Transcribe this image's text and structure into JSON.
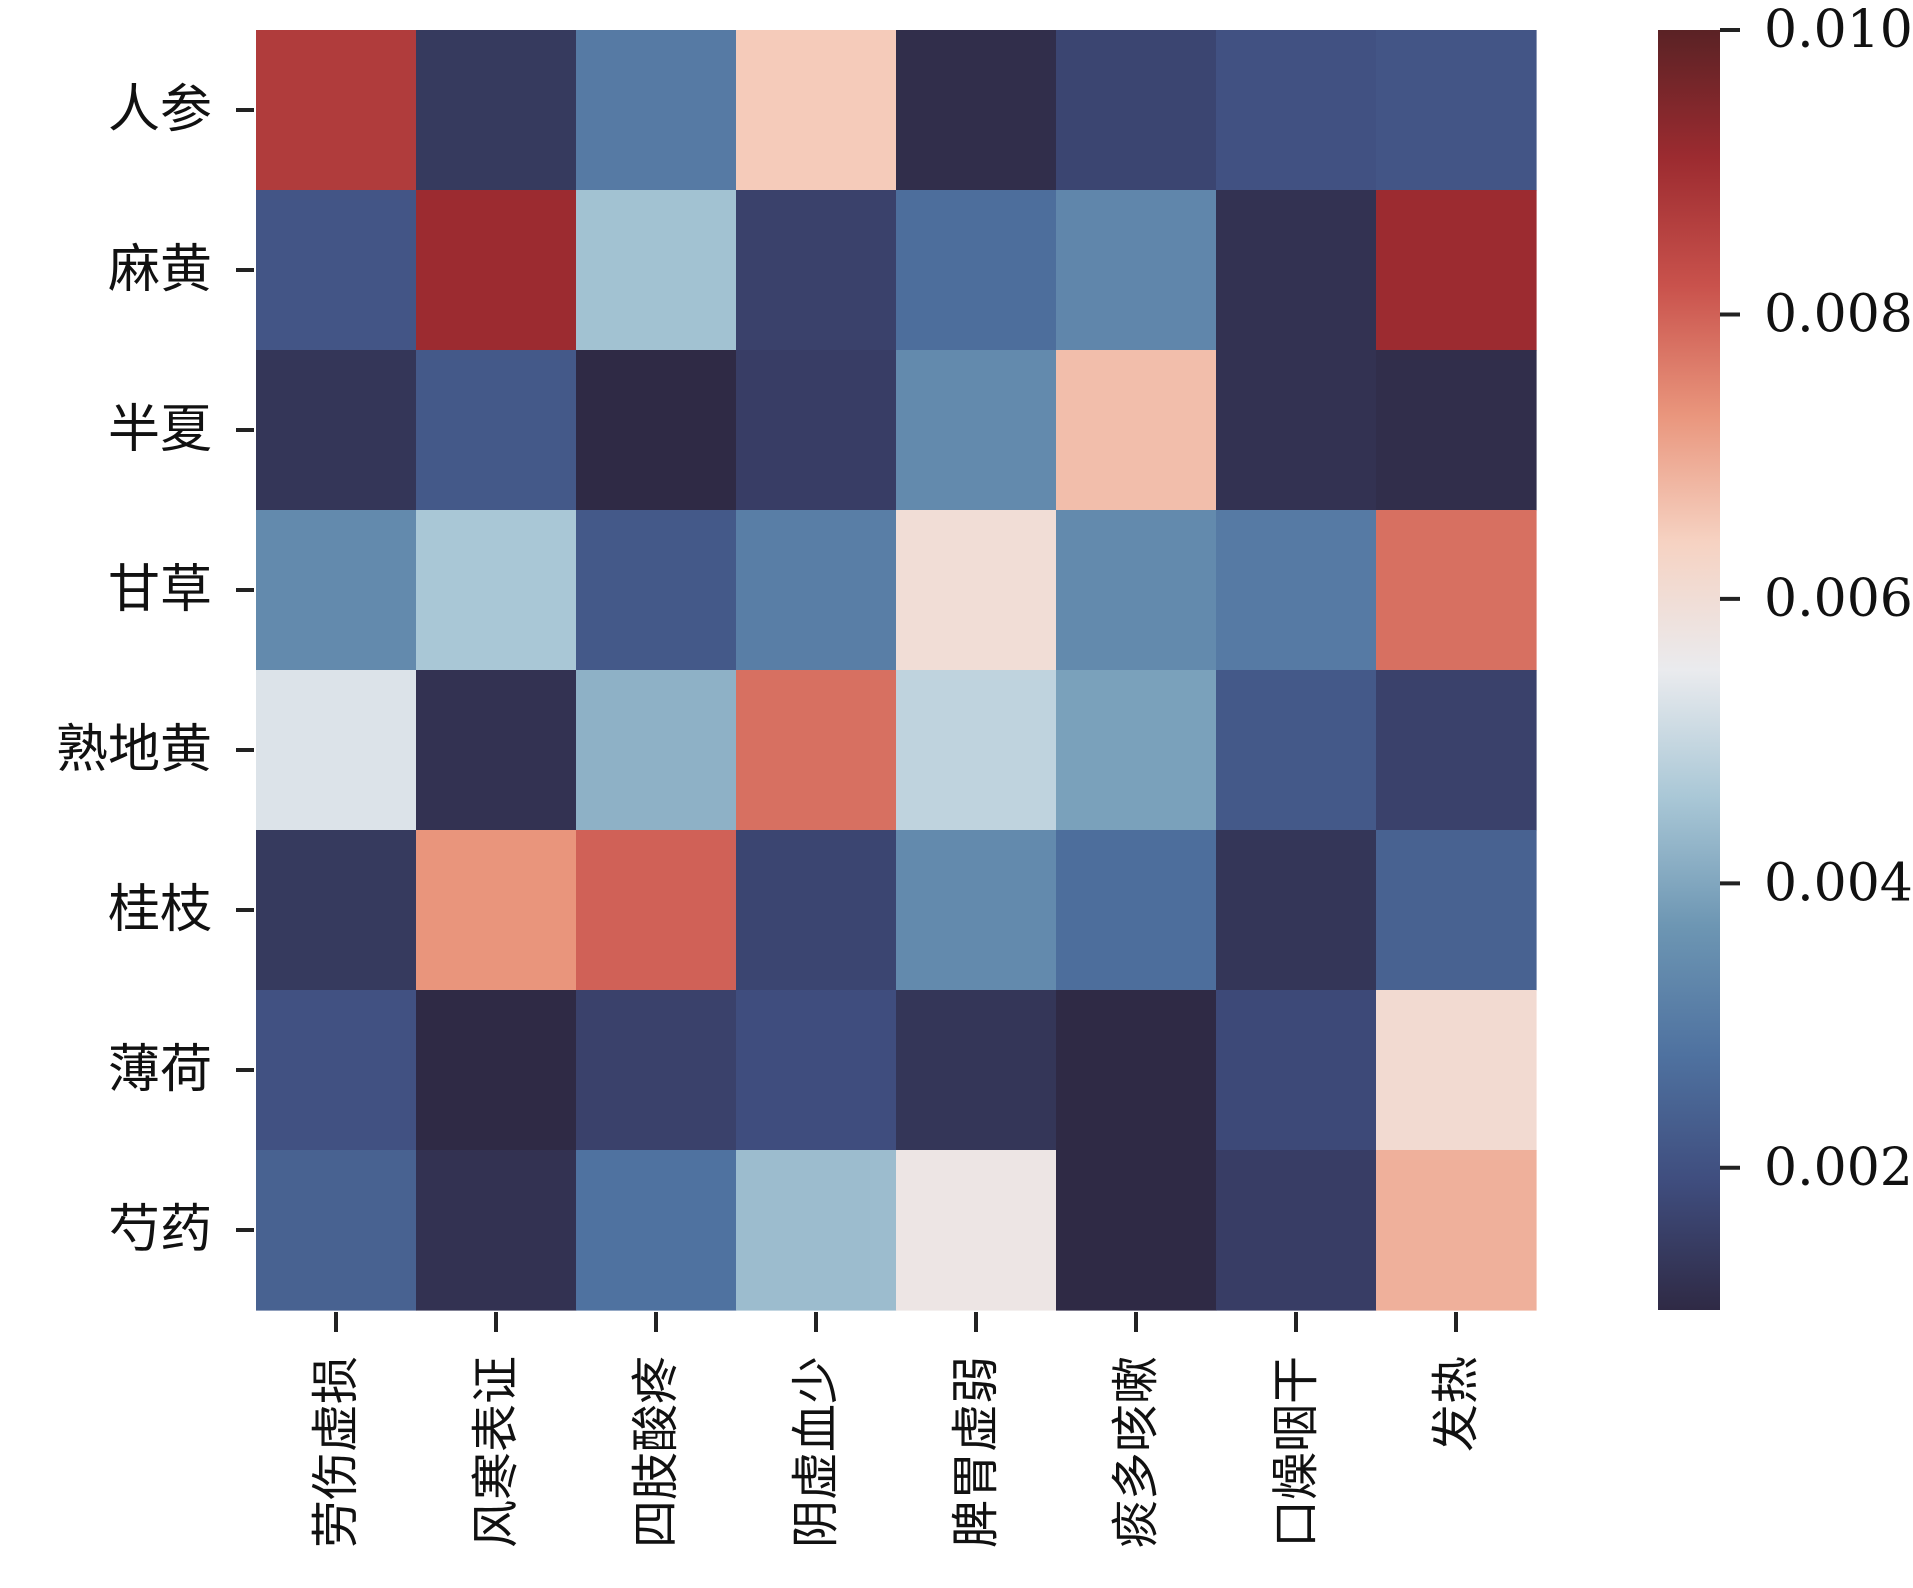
{
  "chart_data": {
    "type": "heatmap",
    "rows": [
      "人参",
      "麻黄",
      "半夏",
      "甘草",
      "熟地黄",
      "桂枝",
      "薄荷",
      "芍药"
    ],
    "columns": [
      "劳伤虚损",
      "风寒表证",
      "四肢酸疼",
      "阴虚血少",
      "脾胃虚弱",
      "痰多咳嗽",
      "口燥咽干",
      "发热"
    ],
    "values": [
      [
        0.0087,
        0.0014,
        0.003,
        0.0065,
        0.0011,
        0.0017,
        0.002,
        0.0021
      ],
      [
        0.0021,
        0.0091,
        0.0045,
        0.0016,
        0.0027,
        0.0033,
        0.0012,
        0.0091
      ],
      [
        0.0013,
        0.0022,
        0.001,
        0.0015,
        0.0034,
        0.0067,
        0.0012,
        0.0011
      ],
      [
        0.0034,
        0.0046,
        0.0022,
        0.0031,
        0.006,
        0.0034,
        0.003,
        0.0078
      ],
      [
        0.0053,
        0.0012,
        0.0042,
        0.0078,
        0.0049,
        0.0039,
        0.0022,
        0.0016
      ],
      [
        0.0014,
        0.0073,
        0.008,
        0.0017,
        0.0034,
        0.0027,
        0.0013,
        0.0024
      ],
      [
        0.002,
        0.001,
        0.0016,
        0.0019,
        0.0013,
        0.001,
        0.0018,
        0.0061
      ],
      [
        0.0024,
        0.0012,
        0.0028,
        0.0044,
        0.0057,
        0.001,
        0.0015,
        0.0069
      ]
    ],
    "colorbar": {
      "ticks": [
        "0.002",
        "0.004",
        "0.006",
        "0.008",
        "0.010"
      ],
      "tick_values": [
        0.002,
        0.004,
        0.006,
        0.008,
        0.01
      ],
      "range": [
        0.001,
        0.01
      ]
    },
    "colormap": [
      "#2f2a45",
      "#3f4d7e",
      "#4f72a0",
      "#6d96b3",
      "#a9c7d6",
      "#eaebee",
      "#f6d2c2",
      "#e9957c",
      "#c9524c",
      "#9c2b30",
      "#5a2225"
    ],
    "grid": false
  }
}
